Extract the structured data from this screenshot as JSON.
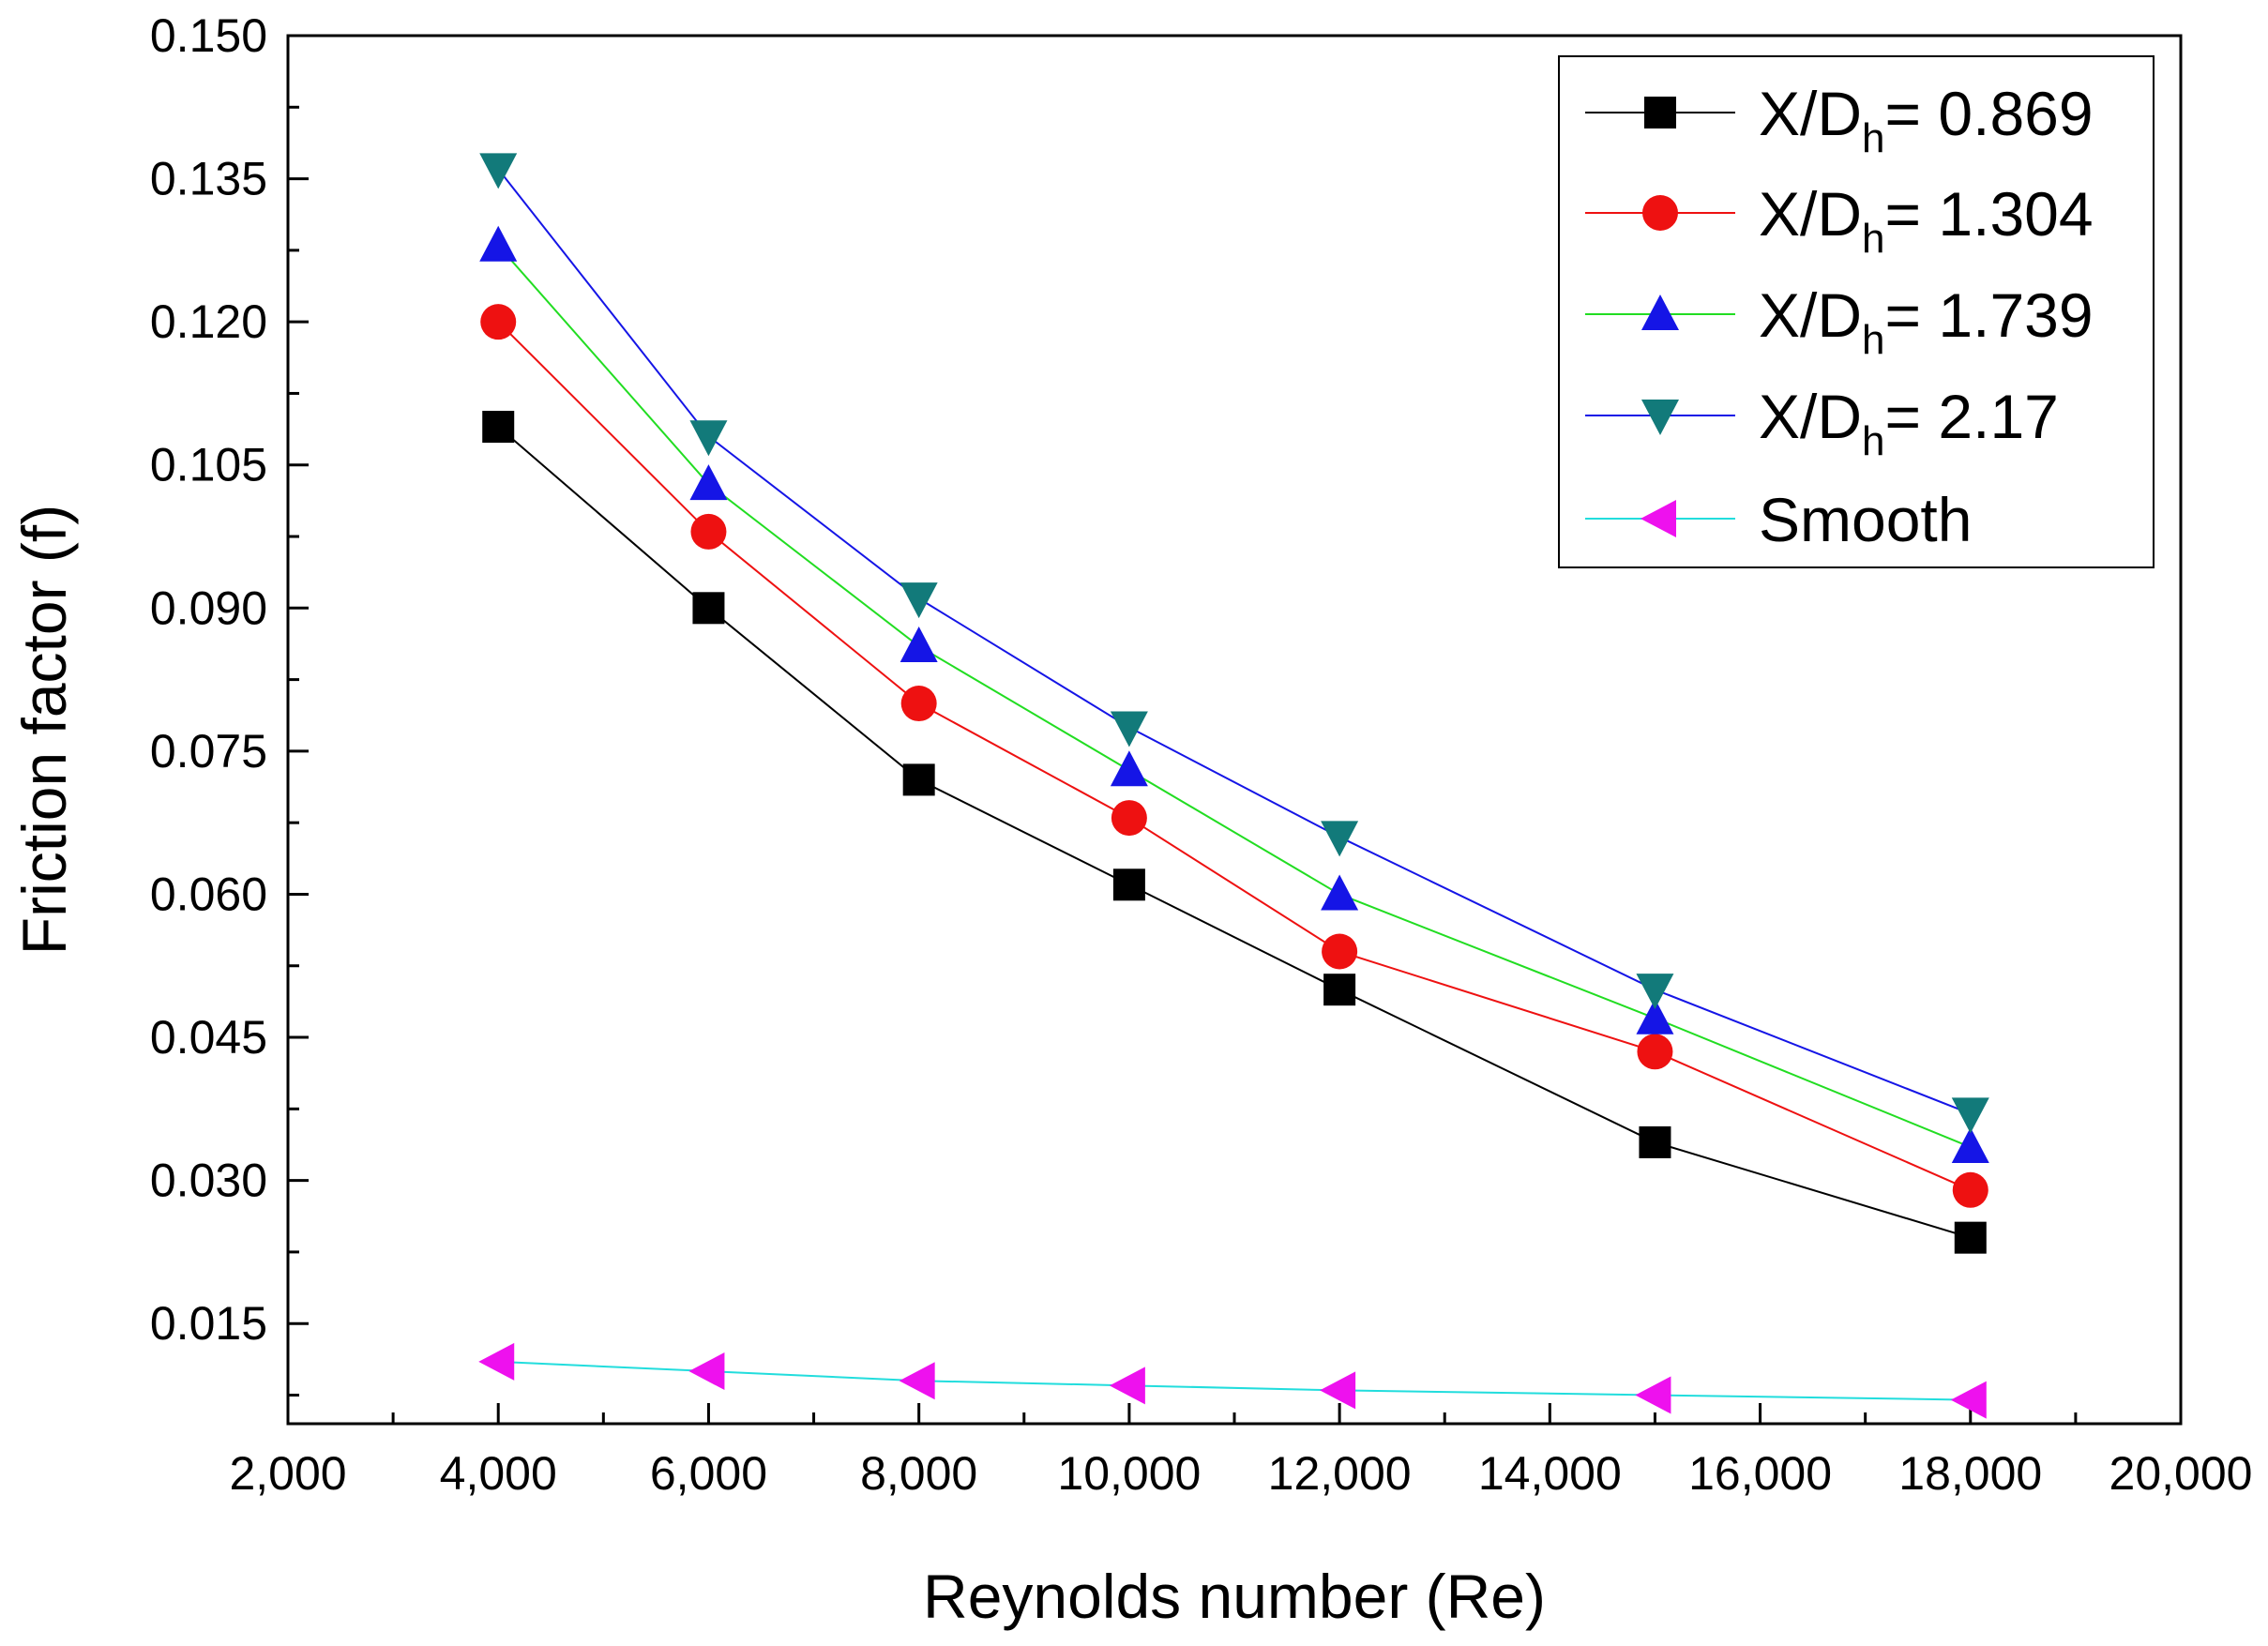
{
  "chart_data": {
    "type": "line",
    "title": "",
    "xlabel": "Reynolds number (Re)",
    "ylabel": "Friction factor (f)",
    "xlim": [
      2000,
      20000
    ],
    "ylim": [
      0.0045,
      0.15
    ],
    "x_ticks": [
      "2,000",
      "4,000",
      "6,000",
      "8,000",
      "10,000",
      "12,000",
      "14,000",
      "16,000",
      "18,000",
      "20,000"
    ],
    "y_ticks": [
      "0.015",
      "0.030",
      "0.045",
      "0.060",
      "0.075",
      "0.090",
      "0.105",
      "0.120",
      "0.135",
      "0.150"
    ],
    "grid": false,
    "legend_position": "top-right",
    "x": [
      4000,
      6000,
      8000,
      10000,
      12000,
      15000,
      18000
    ],
    "series": [
      {
        "name_main": "X/D",
        "name_sub": "h",
        "name_rest": "= 0.869",
        "marker": "square",
        "marker_color": "#000000",
        "line_color": "#000000",
        "values": [
          0.109,
          0.09,
          0.072,
          0.061,
          0.05,
          0.034,
          0.024
        ]
      },
      {
        "name_main": "X/D",
        "name_sub": "h",
        "name_rest": "= 1.304",
        "marker": "circle",
        "marker_color": "#ee1111",
        "line_color": "#ee1111",
        "values": [
          0.12,
          0.098,
          0.08,
          0.068,
          0.054,
          0.0435,
          0.029
        ]
      },
      {
        "name_main": "X/D",
        "name_sub": "h",
        "name_rest": "= 1.739",
        "marker": "triangle-up",
        "marker_color": "#1515e6",
        "line_color": "#22dd22",
        "values": [
          0.128,
          0.103,
          0.086,
          0.073,
          0.06,
          0.047,
          0.0335
        ]
      },
      {
        "name_main": "X/D",
        "name_sub": "h",
        "name_rest": "= 2.17",
        "marker": "triangle-down",
        "marker_color": "#127a7a",
        "line_color": "#1515e6",
        "values": [
          0.136,
          0.108,
          0.091,
          0.0775,
          0.066,
          0.05,
          0.037
        ]
      },
      {
        "name_main": "Smooth",
        "name_sub": "",
        "name_rest": "",
        "marker": "triangle-left",
        "marker_color": "#ee11ee",
        "line_color": "#22dddd",
        "values": [
          0.011,
          0.01,
          0.009,
          0.0085,
          0.008,
          0.0075,
          0.007
        ]
      }
    ]
  }
}
